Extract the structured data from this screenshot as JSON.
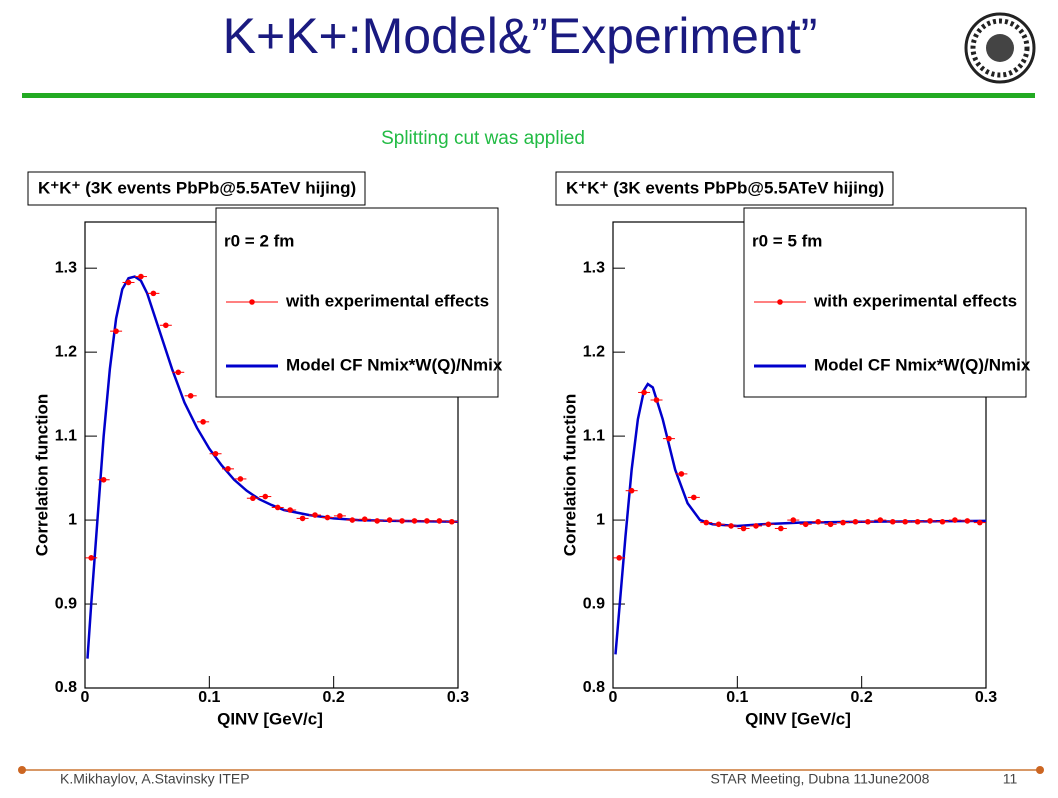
{
  "slide": {
    "title": "K+K+:Model&”Experiment”",
    "subtitle": "Splitting cut was applied",
    "footer_left": "K.Mikhaylov, A.Stavinsky ITEP",
    "footer_center": "STAR Meeting, Dubna 11June2008",
    "page_number": "11"
  },
  "chart_data": [
    {
      "type": "scatter-line",
      "title": "K⁺K⁺ (3K events PbPb@5.5ATeV hijing)",
      "legend_title": "r0 = 2 fm",
      "x_label": "QINV [GeV/c]",
      "y_label": "Correlation function",
      "xlim": [
        0,
        0.3
      ],
      "ylim": [
        0.8,
        1.355
      ],
      "xticks": [
        0,
        0.1,
        0.2,
        0.3
      ],
      "yticks": [
        0.8,
        0.9,
        1,
        1.1,
        1.2,
        1.3
      ],
      "series": [
        {
          "name": "with experimental effects",
          "color": "#ff0000",
          "style": "points",
          "x": [
            0.005,
            0.015,
            0.025,
            0.035,
            0.045,
            0.055,
            0.065,
            0.075,
            0.085,
            0.095,
            0.105,
            0.115,
            0.125,
            0.135,
            0.145,
            0.155,
            0.165,
            0.175,
            0.185,
            0.195,
            0.205,
            0.215,
            0.225,
            0.235,
            0.245,
            0.255,
            0.265,
            0.275,
            0.285,
            0.295
          ],
          "values": [
            0.955,
            1.048,
            1.225,
            1.283,
            1.29,
            1.27,
            1.232,
            1.176,
            1.148,
            1.117,
            1.079,
            1.061,
            1.049,
            1.026,
            1.028,
            1.015,
            1.012,
            1.002,
            1.006,
            1.003,
            1.005,
            1.0,
            1.001,
            0.999,
            1.0,
            0.999,
            0.999,
            0.999,
            0.999,
            0.998
          ]
        },
        {
          "name": "Model CF Nmix*W(Q)/Nmix",
          "color": "#0000cc",
          "style": "line",
          "x": [
            0.002,
            0.005,
            0.01,
            0.015,
            0.02,
            0.025,
            0.03,
            0.035,
            0.04,
            0.045,
            0.05,
            0.06,
            0.07,
            0.08,
            0.09,
            0.1,
            0.11,
            0.12,
            0.13,
            0.14,
            0.15,
            0.16,
            0.18,
            0.2,
            0.22,
            0.25,
            0.3
          ],
          "values": [
            0.835,
            0.9,
            1.0,
            1.1,
            1.18,
            1.24,
            1.275,
            1.288,
            1.29,
            1.285,
            1.27,
            1.225,
            1.18,
            1.14,
            1.11,
            1.085,
            1.065,
            1.048,
            1.035,
            1.025,
            1.018,
            1.012,
            1.006,
            1.002,
            1.0,
            0.999,
            0.998
          ]
        }
      ]
    },
    {
      "type": "scatter-line",
      "title": "K⁺K⁺ (3K events PbPb@5.5ATeV hijing)",
      "legend_title": "r0 = 5 fm",
      "x_label": "QINV [GeV/c]",
      "y_label": "Correlation function",
      "xlim": [
        0,
        0.3
      ],
      "ylim": [
        0.8,
        1.355
      ],
      "xticks": [
        0,
        0.1,
        0.2,
        0.3
      ],
      "yticks": [
        0.8,
        0.9,
        1,
        1.1,
        1.2,
        1.3
      ],
      "series": [
        {
          "name": "with experimental effects",
          "color": "#ff0000",
          "style": "points",
          "x": [
            0.005,
            0.015,
            0.025,
            0.035,
            0.045,
            0.055,
            0.065,
            0.075,
            0.085,
            0.095,
            0.105,
            0.115,
            0.125,
            0.135,
            0.145,
            0.155,
            0.165,
            0.175,
            0.185,
            0.195,
            0.205,
            0.215,
            0.225,
            0.235,
            0.245,
            0.255,
            0.265,
            0.275,
            0.285,
            0.295
          ],
          "values": [
            0.955,
            1.035,
            1.152,
            1.143,
            1.097,
            1.055,
            1.027,
            0.997,
            0.995,
            0.993,
            0.99,
            0.993,
            0.995,
            0.99,
            1.0,
            0.995,
            0.998,
            0.995,
            0.997,
            0.998,
            0.998,
            1.0,
            0.998,
            0.998,
            0.998,
            0.999,
            0.998,
            1.0,
            0.999,
            0.997
          ]
        },
        {
          "name": "Model CF Nmix*W(Q)/Nmix",
          "color": "#0000cc",
          "style": "line",
          "x": [
            0.002,
            0.01,
            0.015,
            0.02,
            0.025,
            0.028,
            0.032,
            0.04,
            0.05,
            0.06,
            0.07,
            0.08,
            0.1,
            0.12,
            0.15,
            0.2,
            0.3
          ],
          "values": [
            0.84,
            0.98,
            1.06,
            1.12,
            1.155,
            1.162,
            1.158,
            1.12,
            1.06,
            1.02,
            1.0,
            0.995,
            0.993,
            0.995,
            0.997,
            0.998,
            0.999
          ]
        }
      ]
    }
  ]
}
